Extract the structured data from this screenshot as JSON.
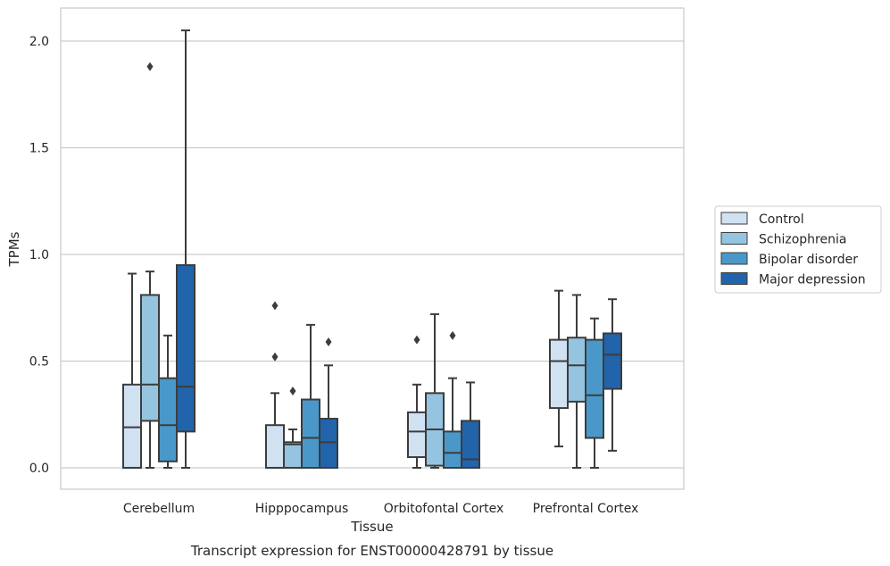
{
  "chart_data": {
    "type": "box",
    "xlabel": "Tissue",
    "ylabel": "TPMs",
    "caption": "Transcript expression for ENST00000428791 by tissue",
    "ylim": [
      -0.1,
      2.15
    ],
    "yticks": [
      "0.0",
      "0.5",
      "1.0",
      "1.5",
      "2.0"
    ],
    "grid": "horizontal",
    "legend_position": "right",
    "categories": [
      "Cerebellum",
      "Hipppocampus",
      "Orbitofontal Cortex",
      "Prefrontal Cortex"
    ],
    "series": [
      {
        "name": "Control",
        "color": "#d0e1f2",
        "boxes": [
          {
            "whislo": 0.0,
            "q1": 0.0,
            "med": 0.19,
            "q3": 0.39,
            "whishi": 0.91,
            "fliers": []
          },
          {
            "whislo": 0.0,
            "q1": 0.0,
            "med": 0.0,
            "q3": 0.2,
            "whishi": 0.35,
            "fliers": [
              0.52,
              0.76
            ]
          },
          {
            "whislo": 0.0,
            "q1": 0.05,
            "med": 0.17,
            "q3": 0.26,
            "whishi": 0.39,
            "fliers": [
              0.6
            ]
          },
          {
            "whislo": 0.1,
            "q1": 0.28,
            "med": 0.5,
            "q3": 0.6,
            "whishi": 0.83,
            "fliers": []
          }
        ]
      },
      {
        "name": "Schizophrenia",
        "color": "#94c4df",
        "boxes": [
          {
            "whislo": 0.0,
            "q1": 0.22,
            "med": 0.39,
            "q3": 0.81,
            "whishi": 0.92,
            "fliers": [
              1.88
            ]
          },
          {
            "whislo": 0.0,
            "q1": 0.0,
            "med": 0.11,
            "q3": 0.12,
            "whishi": 0.18,
            "fliers": [
              0.36
            ]
          },
          {
            "whislo": 0.0,
            "q1": 0.01,
            "med": 0.18,
            "q3": 0.35,
            "whishi": 0.72,
            "fliers": []
          },
          {
            "whislo": 0.0,
            "q1": 0.31,
            "med": 0.48,
            "q3": 0.61,
            "whishi": 0.81,
            "fliers": []
          }
        ]
      },
      {
        "name": "Bipolar disorder",
        "color": "#4a98c9",
        "boxes": [
          {
            "whislo": 0.0,
            "q1": 0.03,
            "med": 0.2,
            "q3": 0.42,
            "whishi": 0.62,
            "fliers": []
          },
          {
            "whislo": 0.0,
            "q1": 0.0,
            "med": 0.14,
            "q3": 0.32,
            "whishi": 0.67,
            "fliers": []
          },
          {
            "whislo": 0.0,
            "q1": 0.0,
            "med": 0.07,
            "q3": 0.17,
            "whishi": 0.42,
            "fliers": [
              0.62
            ]
          },
          {
            "whislo": 0.0,
            "q1": 0.14,
            "med": 0.34,
            "q3": 0.6,
            "whishi": 0.7,
            "fliers": []
          }
        ]
      },
      {
        "name": "Major depression",
        "color": "#2164ab",
        "boxes": [
          {
            "whislo": 0.0,
            "q1": 0.17,
            "med": 0.38,
            "q3": 0.95,
            "whishi": 2.05,
            "fliers": []
          },
          {
            "whislo": 0.0,
            "q1": 0.0,
            "med": 0.12,
            "q3": 0.23,
            "whishi": 0.48,
            "fliers": [
              0.59
            ]
          },
          {
            "whislo": 0.0,
            "q1": 0.0,
            "med": 0.04,
            "q3": 0.22,
            "whishi": 0.4,
            "fliers": []
          },
          {
            "whislo": 0.08,
            "q1": 0.37,
            "med": 0.53,
            "q3": 0.63,
            "whishi": 0.79,
            "fliers": []
          }
        ]
      }
    ]
  }
}
